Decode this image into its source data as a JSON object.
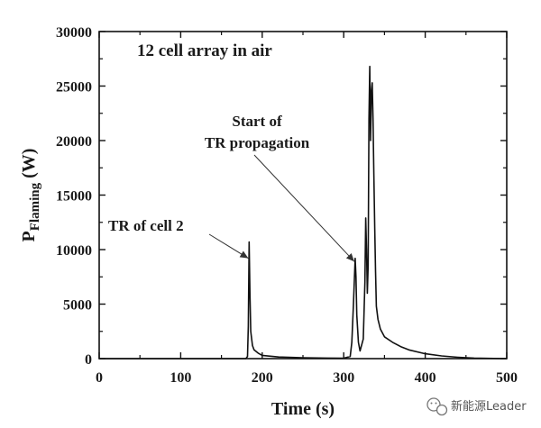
{
  "chart_data": {
    "type": "line",
    "title": "12 cell array in air",
    "xlabel": "Time (s)",
    "ylabel": {
      "main": "P",
      "sub": "Flaming",
      "unit": " (W)"
    },
    "xlim": [
      0,
      500
    ],
    "ylim": [
      0,
      30000
    ],
    "xticks": [
      0,
      100,
      200,
      300,
      400,
      500
    ],
    "yticks": [
      0,
      5000,
      10000,
      15000,
      20000,
      25000,
      30000
    ],
    "grid": false,
    "series": [
      {
        "color": "#111111",
        "x": [
          0,
          100,
          180,
          182,
          183,
          184,
          185,
          186,
          188,
          190,
          195,
          200,
          220,
          250,
          280,
          300,
          308,
          310,
          312,
          314,
          315,
          316,
          318,
          320,
          324,
          326,
          327,
          328,
          329,
          330,
          331,
          332,
          333,
          334,
          335,
          336,
          337,
          338,
          339,
          340,
          342,
          345,
          350,
          360,
          370,
          380,
          400,
          420,
          440,
          460,
          500
        ],
        "y": [
          0,
          0,
          0,
          200,
          3000,
          10700,
          6000,
          2500,
          1200,
          800,
          500,
          300,
          150,
          80,
          50,
          40,
          200,
          1500,
          5000,
          9200,
          7500,
          4000,
          1500,
          700,
          1800,
          7000,
          12900,
          10000,
          6000,
          8500,
          22000,
          26800,
          20000,
          24500,
          25300,
          22000,
          17000,
          12000,
          8000,
          4800,
          3600,
          2700,
          2000,
          1500,
          1100,
          800,
          450,
          250,
          120,
          50,
          0
        ]
      }
    ],
    "annotations": [
      {
        "lines": [
          "TR of cell 2"
        ],
        "target": [
          183,
          9200
        ]
      },
      {
        "lines": [
          "Start of",
          "TR propagation"
        ],
        "target": [
          313,
          8900
        ]
      }
    ]
  },
  "watermark": {
    "text": "新能源Leader",
    "icon": "wechat-icon"
  }
}
